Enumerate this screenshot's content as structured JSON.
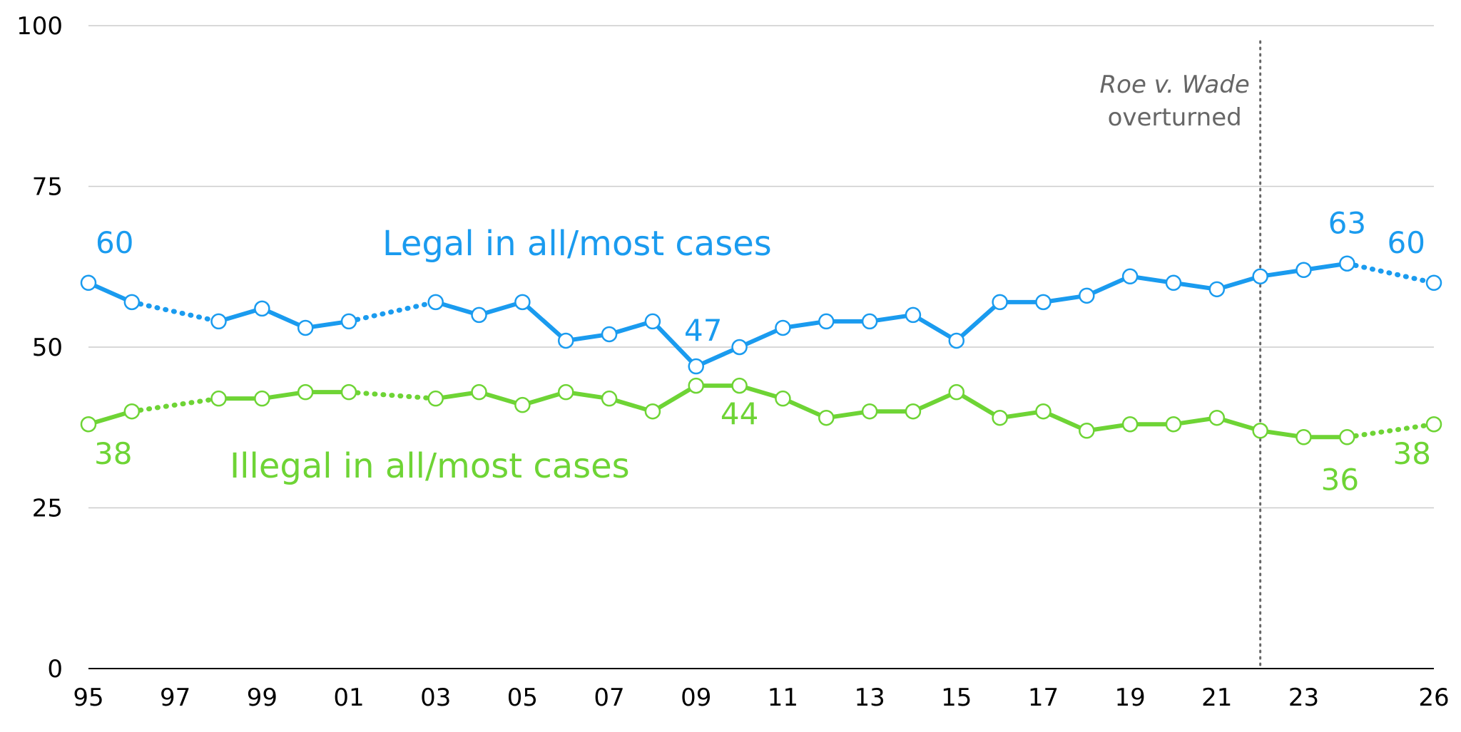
{
  "chart_data": {
    "type": "line",
    "title": "",
    "xlabel": "",
    "ylabel": "",
    "ylim": [
      0,
      100
    ],
    "xlim": [
      1995,
      2026
    ],
    "yticks": [
      0,
      25,
      50,
      75,
      100
    ],
    "ytick_labels": [
      "0",
      "25",
      "50",
      "75",
      "100"
    ],
    "xticks": [
      1995,
      1997,
      1999,
      2001,
      2003,
      2005,
      2007,
      2009,
      2011,
      2013,
      2015,
      2017,
      2019,
      2021,
      2023,
      2026
    ],
    "xtick_labels": [
      "95",
      "97",
      "99",
      "01",
      "03",
      "05",
      "07",
      "09",
      "11",
      "13",
      "15",
      "17",
      "19",
      "21",
      "23",
      "26"
    ],
    "grid": true,
    "colors": {
      "legal": "#1a9bef",
      "illegal": "#6ed435",
      "annotation": "#666666",
      "grid": "#cccccc",
      "marker_fill": "#ffffff"
    },
    "series": [
      {
        "id": "legal",
        "name": "Legal in all/most cases",
        "x": [
          1995,
          1996,
          1998,
          1999,
          2000,
          2001,
          2003,
          2004,
          2005,
          2006,
          2007,
          2008,
          2009,
          2010,
          2011,
          2012,
          2013,
          2014,
          2015,
          2016,
          2017,
          2018,
          2019,
          2020,
          2021,
          2022,
          2023,
          2024,
          2026
        ],
        "values": [
          60,
          57,
          54,
          56,
          53,
          54,
          57,
          55,
          57,
          51,
          52,
          54,
          47,
          50,
          53,
          54,
          54,
          55,
          51,
          57,
          57,
          58,
          61,
          60,
          59,
          61,
          62,
          63,
          60
        ],
        "data_labels": [
          {
            "x": 1995,
            "text": "60"
          },
          {
            "x": 2009,
            "text": "47"
          },
          {
            "x": 2024,
            "text": "63"
          },
          {
            "x": 2026,
            "text": "60"
          }
        ]
      },
      {
        "id": "illegal",
        "name": "Illegal in all/most cases",
        "x": [
          1995,
          1996,
          1998,
          1999,
          2000,
          2001,
          2003,
          2004,
          2005,
          2006,
          2007,
          2008,
          2009,
          2010,
          2011,
          2012,
          2013,
          2014,
          2015,
          2016,
          2017,
          2018,
          2019,
          2020,
          2021,
          2022,
          2023,
          2024,
          2026
        ],
        "values": [
          38,
          40,
          42,
          42,
          43,
          43,
          42,
          43,
          41,
          43,
          42,
          40,
          44,
          44,
          42,
          39,
          40,
          40,
          43,
          39,
          40,
          37,
          38,
          38,
          39,
          37,
          36,
          36,
          38
        ],
        "data_labels": [
          {
            "x": 1995,
            "text": "38"
          },
          {
            "x": 2010,
            "text": "44"
          },
          {
            "x": 2024,
            "text": "36"
          },
          {
            "x": 2026,
            "text": "38"
          }
        ]
      }
    ],
    "annotations": [
      {
        "x": 2022,
        "line1": "Roe v. Wade",
        "line2": "overturned"
      }
    ]
  }
}
